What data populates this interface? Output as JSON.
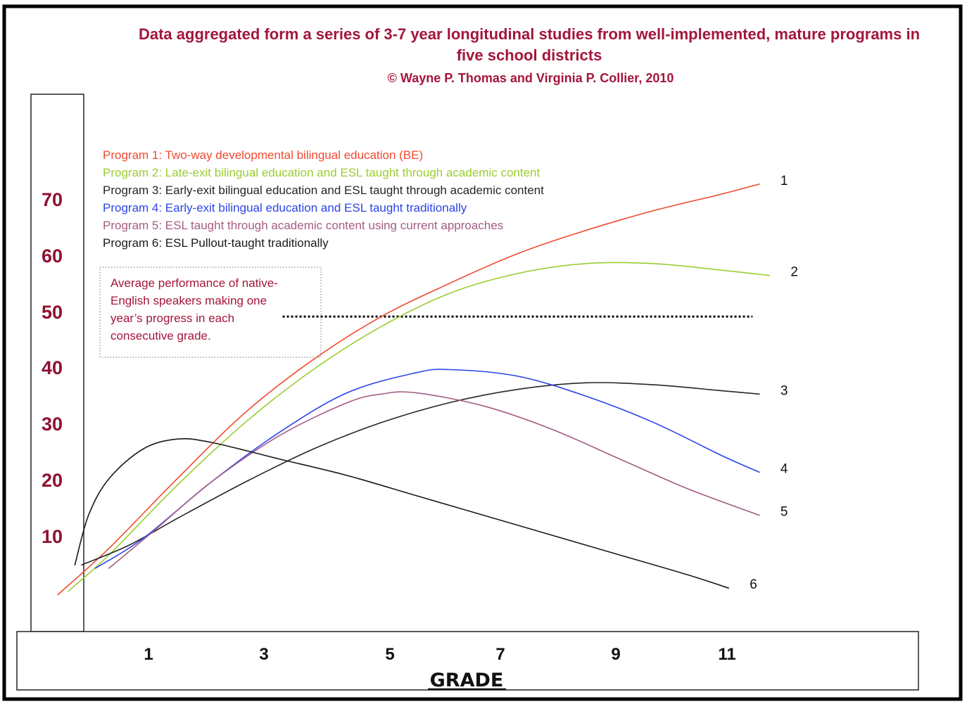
{
  "chart_data": {
    "type": "line",
    "title_lines": [
      "Data aggregated form a series of 3-7 year longitudinal studies from well-implemented, mature programs in",
      "five school districts"
    ],
    "subtitle": "© Wayne P. Thomas and Virginia P. Collier, 2010",
    "xlabel": "GRADE",
    "ylabel": "",
    "x_ticks": [
      1,
      3,
      5,
      7,
      9,
      11
    ],
    "y_ticks": [
      10,
      20,
      30,
      40,
      50,
      60,
      70
    ],
    "xlim": [
      -0.1,
      14.1
    ],
    "ylim": [
      -8.5,
      97.8
    ],
    "grid": false,
    "legend_position": "top-left",
    "series": [
      {
        "name": "Program 1: Two-way developmental bilingual education (BE)",
        "label": "1",
        "color": "#f04a2f",
        "points": [
          [
            0.75,
            8
          ],
          [
            1.5,
            15
          ],
          [
            2.5,
            25.5
          ],
          [
            3.5,
            35.5
          ],
          [
            4.5,
            43.5
          ],
          [
            5.5,
            50
          ],
          [
            6.5,
            55
          ],
          [
            7.5,
            59.5
          ],
          [
            8.5,
            63
          ],
          [
            9.5,
            66
          ],
          [
            10.5,
            68.5
          ],
          [
            11.05,
            70
          ]
        ]
      },
      {
        "name": "Program 2: Late-exit bilingual education and ESL taught through academic content",
        "label": "2",
        "color": "#9acd32",
        "points": [
          [
            0.9,
            8.5
          ],
          [
            1.5,
            14
          ],
          [
            2.5,
            24.5
          ],
          [
            3.5,
            34
          ],
          [
            4.5,
            42
          ],
          [
            5.5,
            48.5
          ],
          [
            6.5,
            53.5
          ],
          [
            7.5,
            56.5
          ],
          [
            8.5,
            58
          ],
          [
            9.5,
            58
          ],
          [
            10.5,
            57
          ],
          [
            11.2,
            56.2
          ]
        ]
      },
      {
        "name": "Program 3: Early-exit bilingual education and ESL taught through academic content",
        "label": "3",
        "color": "#262626",
        "points": [
          [
            1.1,
            12.5
          ],
          [
            1.8,
            15.5
          ],
          [
            2.5,
            19.5
          ],
          [
            3.5,
            25
          ],
          [
            4.5,
            30
          ],
          [
            5.5,
            34
          ],
          [
            6.5,
            37
          ],
          [
            7.5,
            39
          ],
          [
            8.5,
            40
          ],
          [
            9.5,
            39.7
          ],
          [
            10.5,
            38.8
          ],
          [
            11.05,
            38.3
          ]
        ]
      },
      {
        "name": "Program 4: Early-exit bilingual education and ESL taught traditionally",
        "label": "4",
        "color": "#2b44e6",
        "points": [
          [
            1.3,
            12
          ],
          [
            2.0,
            16.5
          ],
          [
            3.0,
            25
          ],
          [
            4.0,
            32.5
          ],
          [
            5.0,
            38.5
          ],
          [
            6.0,
            41.5
          ],
          [
            6.5,
            42
          ],
          [
            7.5,
            41
          ],
          [
            8.5,
            38
          ],
          [
            9.5,
            34
          ],
          [
            10.5,
            29
          ],
          [
            11.05,
            26.5
          ]
        ]
      },
      {
        "name": "Program 5: ESL taught through academic content using current approaches",
        "label": "5",
        "color": "#a45c84",
        "points": [
          [
            1.5,
            12
          ],
          [
            2.2,
            18
          ],
          [
            3.0,
            25
          ],
          [
            4.0,
            32
          ],
          [
            5.0,
            37
          ],
          [
            5.5,
            38.3
          ],
          [
            6.0,
            38.5
          ],
          [
            7.0,
            36.5
          ],
          [
            8.0,
            33
          ],
          [
            9.0,
            28.5
          ],
          [
            10.0,
            24
          ],
          [
            11.05,
            20
          ]
        ]
      },
      {
        "name": "Program 6: ESL Pullout-taught traditionally",
        "label": "6",
        "color": "#1a1a1a",
        "points": [
          [
            1.0,
            12.5
          ],
          [
            1.2,
            20
          ],
          [
            1.5,
            25.5
          ],
          [
            2.0,
            30
          ],
          [
            2.5,
            31.5
          ],
          [
            3.0,
            31
          ],
          [
            4.0,
            28.5
          ],
          [
            5.0,
            26
          ],
          [
            6.0,
            23
          ],
          [
            7.0,
            20
          ],
          [
            8.0,
            17
          ],
          [
            9.0,
            14
          ],
          [
            10.0,
            11
          ],
          [
            10.6,
            9
          ]
        ]
      }
    ],
    "reference_line": {
      "label": "Average performance of native-English speakers making one year’s progress in each consecutive grade.",
      "y": 50,
      "x_start": 4.05,
      "x_end": 10.95,
      "style": "dotted"
    },
    "annotation_lines": [
      "Average performance of native-",
      "English speakers making one",
      "year’s progress in each",
      "consecutive grade."
    ]
  }
}
